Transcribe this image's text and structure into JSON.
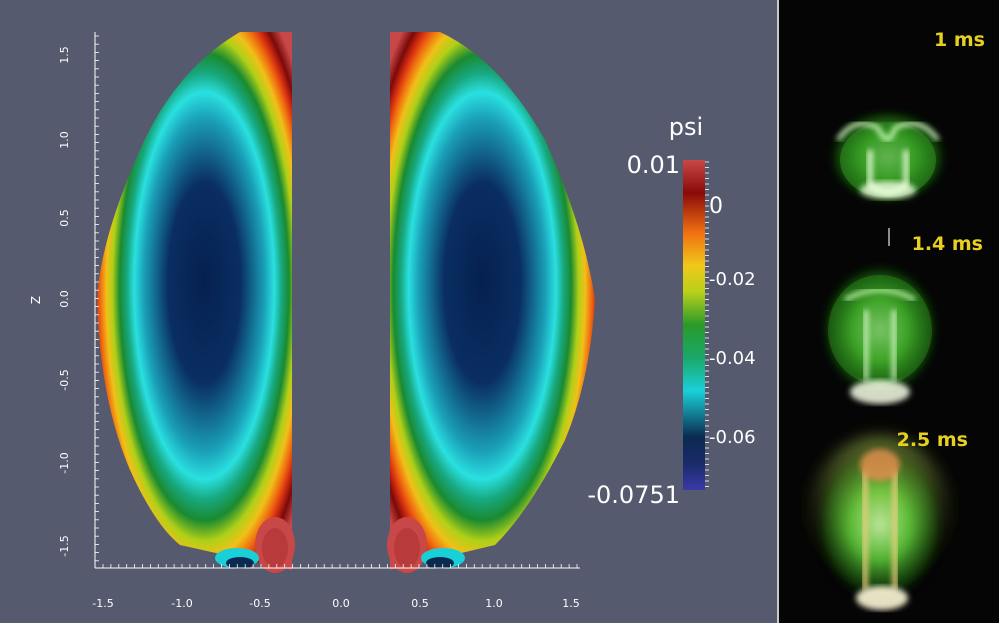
{
  "plot": {
    "background": "#555a6e",
    "x_axis": {
      "ticks": [
        "-1.5",
        "-1.0",
        "-0.5",
        "0.0",
        "0.5",
        "1.0",
        "1.5"
      ]
    },
    "z_axis": {
      "label": "Z",
      "ticks": [
        "1.5",
        "1.0",
        "0.5",
        "0.0",
        "-0.5",
        "-1.0",
        "-1.5"
      ]
    }
  },
  "colorbar": {
    "title": "psi",
    "max_label": "0.01",
    "min_label": "-0.0751",
    "ticks": [
      "0",
      "-0.02",
      "-0.04",
      "-0.06"
    ],
    "stops": [
      "#3a3aa8",
      "#1a2a6a",
      "#0a2a50",
      "#1ad0d8",
      "#1aa86a",
      "#2a9a2a",
      "#b8d01a",
      "#f0c81a",
      "#f07010",
      "#8a0a0a",
      "#c84848"
    ]
  },
  "photos": {
    "background": "#050505",
    "frames": [
      {
        "time": "1 ms"
      },
      {
        "time": "1.4 ms"
      },
      {
        "time": "2.5 ms"
      }
    ]
  },
  "colors": {
    "time_label": "#e8d020",
    "plasma_green": "#6ae84a"
  }
}
